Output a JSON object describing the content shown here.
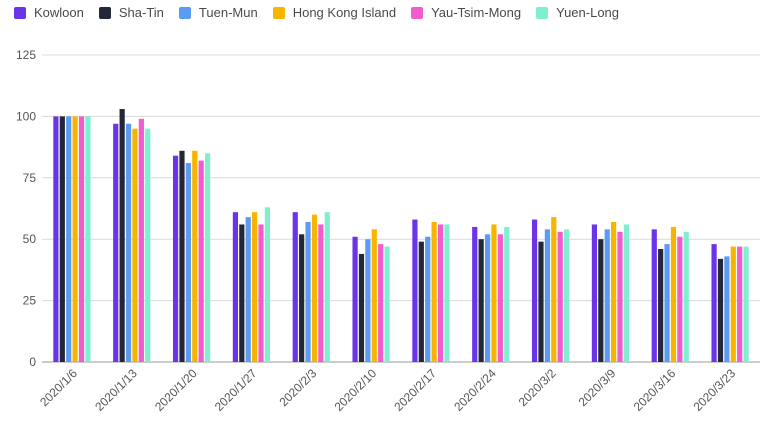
{
  "chart_data": {
    "type": "bar",
    "title": "",
    "xlabel": "",
    "ylabel": "",
    "ylim": [
      0,
      125
    ],
    "yticks": [
      0,
      25,
      50,
      75,
      100,
      125
    ],
    "grid": true,
    "legend_position": "top-left",
    "categories": [
      "2020/1/6",
      "2020/1/13",
      "2020/1/20",
      "2020/1/27",
      "2020/2/3",
      "2020/2/10",
      "2020/2/17",
      "2020/2/24",
      "2020/3/2",
      "2020/3/9",
      "2020/3/16",
      "2020/3/23"
    ],
    "series": [
      {
        "name": "Kowloon",
        "color": "#6a34e8",
        "values": [
          100,
          97,
          84,
          61,
          61,
          51,
          58,
          55,
          58,
          56,
          54,
          48
        ]
      },
      {
        "name": "Sha-Tin",
        "color": "#232838",
        "values": [
          100,
          103,
          86,
          56,
          52,
          44,
          49,
          50,
          49,
          50,
          46,
          42
        ]
      },
      {
        "name": "Tuen-Mun",
        "color": "#5b9bf2",
        "values": [
          100,
          97,
          81,
          59,
          57,
          50,
          51,
          52,
          54,
          54,
          48,
          43
        ]
      },
      {
        "name": "Hong Kong Island",
        "color": "#f7b500",
        "values": [
          100,
          95,
          86,
          61,
          60,
          54,
          57,
          56,
          59,
          57,
          55,
          47
        ]
      },
      {
        "name": "Yau-Tsim-Mong",
        "color": "#f25ccf",
        "values": [
          100,
          99,
          82,
          56,
          56,
          48,
          56,
          52,
          53,
          53,
          51,
          47
        ]
      },
      {
        "name": "Yuen-Long",
        "color": "#7ff0cf",
        "values": [
          100,
          95,
          85,
          63,
          61,
          47,
          56,
          55,
          54,
          56,
          53,
          47
        ]
      }
    ]
  }
}
